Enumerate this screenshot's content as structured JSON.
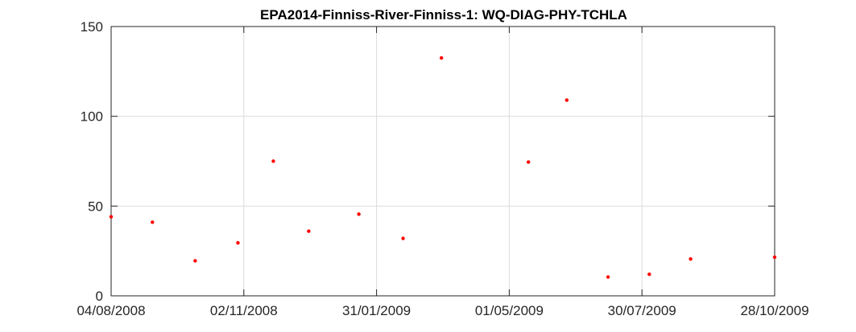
{
  "chart_data": {
    "type": "scatter",
    "title": "EPA2014-Finniss-River-Finniss-1: WQ-DIAG-PHY-TCHLA",
    "xlabel": "",
    "ylabel": "",
    "x_axis_type": "date",
    "xlim": [
      "2008-08-04",
      "2009-10-28"
    ],
    "ylim": [
      0,
      150
    ],
    "x_ticks": [
      {
        "date": "2008-08-04",
        "label": "04/08/2008"
      },
      {
        "date": "2008-11-02",
        "label": "02/11/2008"
      },
      {
        "date": "2009-01-31",
        "label": "31/01/2009"
      },
      {
        "date": "2009-05-01",
        "label": "01/05/2009"
      },
      {
        "date": "2009-07-30",
        "label": "30/07/2009"
      },
      {
        "date": "2009-10-28",
        "label": "28/10/2009"
      }
    ],
    "y_ticks": [
      {
        "value": 0,
        "label": "0"
      },
      {
        "value": 50,
        "label": "50"
      },
      {
        "value": 100,
        "label": "100"
      },
      {
        "value": 150,
        "label": "150"
      }
    ],
    "grid": true,
    "marker_color": "#ff0000",
    "series": [
      {
        "points": [
          {
            "x": "2008-08-04",
            "y": 44
          },
          {
            "x": "2008-09-01",
            "y": 41
          },
          {
            "x": "2008-09-30",
            "y": 19.5
          },
          {
            "x": "2008-10-29",
            "y": 29.5
          },
          {
            "x": "2008-11-22",
            "y": 75
          },
          {
            "x": "2008-12-16",
            "y": 36
          },
          {
            "x": "2009-01-19",
            "y": 45.5
          },
          {
            "x": "2009-02-18",
            "y": 32
          },
          {
            "x": "2009-03-16",
            "y": 132.5
          },
          {
            "x": "2009-05-14",
            "y": 74.5
          },
          {
            "x": "2009-06-09",
            "y": 109
          },
          {
            "x": "2009-07-07",
            "y": 10.5
          },
          {
            "x": "2009-08-04",
            "y": 12
          },
          {
            "x": "2009-09-01",
            "y": 20.5
          },
          {
            "x": "2009-10-28",
            "y": 21.5
          }
        ]
      }
    ]
  }
}
